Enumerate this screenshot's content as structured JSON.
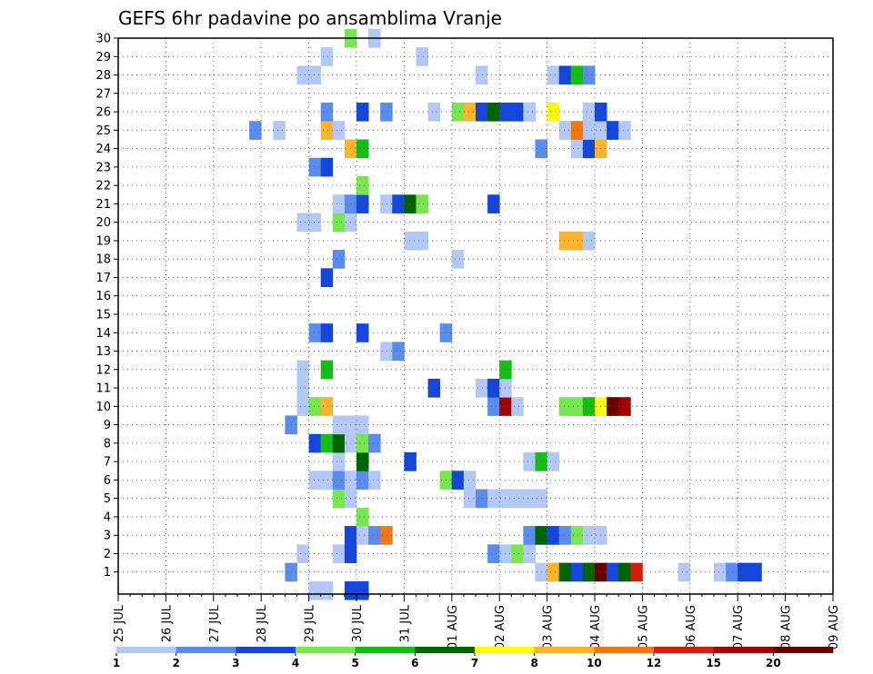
{
  "chart_data": {
    "type": "heatmap",
    "title": "GEFS 6hr padavine po ansamblima Vranje",
    "xlabel": "",
    "ylabel": "",
    "x_ticks": [
      "25 JUL",
      "26 JUL",
      "27 JUL",
      "28 JUL",
      "29 JUL",
      "30 JUL",
      "31 JUL",
      "01 AUG",
      "02 AUG",
      "03 AUG",
      "04 AUG",
      "05 AUG",
      "06 AUG",
      "07 AUG",
      "08 AUG",
      "09 AUG"
    ],
    "y_ticks": [
      1,
      2,
      3,
      4,
      5,
      6,
      7,
      8,
      9,
      10,
      11,
      12,
      13,
      14,
      15,
      16,
      17,
      18,
      19,
      20,
      21,
      22,
      23,
      24,
      25,
      26,
      27,
      28,
      29,
      30
    ],
    "x_step_hours": 6,
    "grid": true,
    "legend": {
      "position": "bottom",
      "labels": [
        "1",
        "2",
        "3",
        "4",
        "5",
        "6",
        "7",
        "8",
        "10",
        "12",
        "15",
        "20"
      ],
      "colors": [
        "#b4c8f5",
        "#5a8cee",
        "#1446dc",
        "#78e650",
        "#14be14",
        "#006400",
        "#fafa14",
        "#fab42d",
        "#f07814",
        "#d21e0a",
        "#a00000",
        "#640000"
      ]
    },
    "colors": {
      "c1": "#b4c8f5",
      "c2": "#5a8cee",
      "c3": "#1446dc",
      "c4": "#78e650",
      "c5": "#14be14",
      "c6": "#006400",
      "c7": "#fafa14",
      "c8": "#fab42d",
      "c10": "#f07814",
      "c12": "#d21e0a",
      "c15": "#a00000",
      "c20": "#640000"
    },
    "cells": [
      [
        0,
        16,
        "c1"
      ],
      [
        0,
        17,
        "c1"
      ],
      [
        0,
        19,
        "c3"
      ],
      [
        0,
        20,
        "c3"
      ],
      [
        1,
        39,
        "c1"
      ],
      [
        1,
        47,
        "c1"
      ],
      [
        1,
        50,
        "c1"
      ],
      [
        1,
        51,
        "c2"
      ],
      [
        1,
        52,
        "c3"
      ],
      [
        1,
        53,
        "c3"
      ],
      [
        1,
        14,
        "c2"
      ],
      [
        1,
        35,
        "c1"
      ],
      [
        1,
        36,
        "c1"
      ],
      [
        1,
        36,
        "c8"
      ],
      [
        1,
        37,
        "c6"
      ],
      [
        1,
        38,
        "c3"
      ],
      [
        1,
        39,
        "c6"
      ],
      [
        1,
        40,
        "c20"
      ],
      [
        1,
        41,
        "c3"
      ],
      [
        1,
        42,
        "c6"
      ],
      [
        1,
        43,
        "c12"
      ],
      [
        2,
        15,
        "c1"
      ],
      [
        2,
        18,
        "c1"
      ],
      [
        2,
        19,
        "c3"
      ],
      [
        2,
        31,
        "c2"
      ],
      [
        2,
        32,
        "c1"
      ],
      [
        2,
        33,
        "c4"
      ],
      [
        2,
        34,
        "c1"
      ],
      [
        3,
        19,
        "c3"
      ],
      [
        3,
        20,
        "c1"
      ],
      [
        3,
        21,
        "c2"
      ],
      [
        3,
        22,
        "c10"
      ],
      [
        3,
        34,
        "c2"
      ],
      [
        3,
        35,
        "c6"
      ],
      [
        3,
        36,
        "c3"
      ],
      [
        3,
        37,
        "c2"
      ],
      [
        3,
        38,
        "c4"
      ],
      [
        3,
        39,
        "c1"
      ],
      [
        3,
        40,
        "c1"
      ],
      [
        4,
        20,
        "c4"
      ],
      [
        5,
        18,
        "c4"
      ],
      [
        5,
        19,
        "c1"
      ],
      [
        5,
        29,
        "c1"
      ],
      [
        5,
        30,
        "c2"
      ],
      [
        5,
        31,
        "c1"
      ],
      [
        5,
        32,
        "c1"
      ],
      [
        5,
        33,
        "c1"
      ],
      [
        5,
        34,
        "c1"
      ],
      [
        5,
        35,
        "c1"
      ],
      [
        6,
        16,
        "c1"
      ],
      [
        6,
        17,
        "c1"
      ],
      [
        6,
        18,
        "c2"
      ],
      [
        6,
        19,
        "c1"
      ],
      [
        6,
        20,
        "c2"
      ],
      [
        6,
        21,
        "c1"
      ],
      [
        6,
        27,
        "c4"
      ],
      [
        6,
        28,
        "c3"
      ],
      [
        6,
        29,
        "c1"
      ],
      [
        7,
        18,
        "c1"
      ],
      [
        7,
        20,
        "c6"
      ],
      [
        7,
        24,
        "c3"
      ],
      [
        7,
        34,
        "c1"
      ],
      [
        7,
        35,
        "c5"
      ],
      [
        7,
        36,
        "c1"
      ],
      [
        8,
        16,
        "c3"
      ],
      [
        8,
        17,
        "c5"
      ],
      [
        8,
        18,
        "c6"
      ],
      [
        8,
        19,
        "c1"
      ],
      [
        8,
        20,
        "c4"
      ],
      [
        8,
        21,
        "c2"
      ],
      [
        9,
        14,
        "c2"
      ],
      [
        9,
        18,
        "c1"
      ],
      [
        9,
        19,
        "c1"
      ],
      [
        9,
        20,
        "c1"
      ],
      [
        10,
        15,
        "c1"
      ],
      [
        10,
        16,
        "c4"
      ],
      [
        10,
        17,
        "c8"
      ],
      [
        10,
        31,
        "c2"
      ],
      [
        10,
        32,
        "c15"
      ],
      [
        10,
        33,
        "c1"
      ],
      [
        10,
        37,
        "c4"
      ],
      [
        10,
        38,
        "c4"
      ],
      [
        10,
        39,
        "c5"
      ],
      [
        10,
        40,
        "c7"
      ],
      [
        10,
        41,
        "c20"
      ],
      [
        10,
        42,
        "c15"
      ],
      [
        11,
        15,
        "c1"
      ],
      [
        11,
        26,
        "c3"
      ],
      [
        11,
        30,
        "c1"
      ],
      [
        11,
        31,
        "c3"
      ],
      [
        11,
        32,
        "c1"
      ],
      [
        12,
        15,
        "c1"
      ],
      [
        12,
        17,
        "c5"
      ],
      [
        12,
        32,
        "c5"
      ],
      [
        13,
        22,
        "c1"
      ],
      [
        13,
        23,
        "c2"
      ],
      [
        14,
        16,
        "c2"
      ],
      [
        14,
        17,
        "c3"
      ],
      [
        14,
        20,
        "c3"
      ],
      [
        14,
        27,
        "c2"
      ],
      [
        17,
        17,
        "c3"
      ],
      [
        18,
        18,
        "c2"
      ],
      [
        18,
        28,
        "c1"
      ],
      [
        19,
        24,
        "c1"
      ],
      [
        19,
        25,
        "c1"
      ],
      [
        19,
        37,
        "c8"
      ],
      [
        19,
        38,
        "c8"
      ],
      [
        19,
        39,
        "c1"
      ],
      [
        20,
        15,
        "c1"
      ],
      [
        20,
        16,
        "c1"
      ],
      [
        20,
        18,
        "c4"
      ],
      [
        20,
        19,
        "c1"
      ],
      [
        21,
        18,
        "c1"
      ],
      [
        21,
        19,
        "c2"
      ],
      [
        21,
        20,
        "c3"
      ],
      [
        21,
        22,
        "c1"
      ],
      [
        21,
        23,
        "c3"
      ],
      [
        21,
        24,
        "c6"
      ],
      [
        21,
        25,
        "c4"
      ],
      [
        21,
        31,
        "c3"
      ],
      [
        22,
        20,
        "c4"
      ],
      [
        23,
        16,
        "c2"
      ],
      [
        23,
        17,
        "c3"
      ],
      [
        24,
        19,
        "c8"
      ],
      [
        24,
        20,
        "c5"
      ],
      [
        24,
        35,
        "c2"
      ],
      [
        24,
        38,
        "c1"
      ],
      [
        24,
        39,
        "c3"
      ],
      [
        24,
        40,
        "c8"
      ],
      [
        25,
        11,
        "c2"
      ],
      [
        25,
        13,
        "c1"
      ],
      [
        25,
        17,
        "c8"
      ],
      [
        25,
        18,
        "c1"
      ],
      [
        25,
        37,
        "c1"
      ],
      [
        25,
        38,
        "c10"
      ],
      [
        25,
        39,
        "c1"
      ],
      [
        25,
        40,
        "c1"
      ],
      [
        25,
        41,
        "c3"
      ],
      [
        25,
        42,
        "c1"
      ],
      [
        26,
        17,
        "c2"
      ],
      [
        26,
        20,
        "c3"
      ],
      [
        26,
        22,
        "c2"
      ],
      [
        26,
        26,
        "c1"
      ],
      [
        26,
        28,
        "c4"
      ],
      [
        26,
        29,
        "c8"
      ],
      [
        26,
        30,
        "c3"
      ],
      [
        26,
        31,
        "c6"
      ],
      [
        26,
        32,
        "c3"
      ],
      [
        26,
        33,
        "c3"
      ],
      [
        26,
        34,
        "c3"
      ],
      [
        26,
        36,
        "c7"
      ],
      [
        26,
        34,
        "c1"
      ],
      [
        26,
        39,
        "c1"
      ],
      [
        26,
        40,
        "c3"
      ],
      [
        28,
        15,
        "c1"
      ],
      [
        28,
        16,
        "c1"
      ],
      [
        28,
        30,
        "c1"
      ],
      [
        28,
        36,
        "c1"
      ],
      [
        28,
        37,
        "c3"
      ],
      [
        28,
        38,
        "c5"
      ],
      [
        28,
        39,
        "c2"
      ],
      [
        29,
        17,
        "c1"
      ],
      [
        29,
        25,
        "c1"
      ],
      [
        30,
        19,
        "c4"
      ],
      [
        30,
        21,
        "c1"
      ]
    ]
  }
}
